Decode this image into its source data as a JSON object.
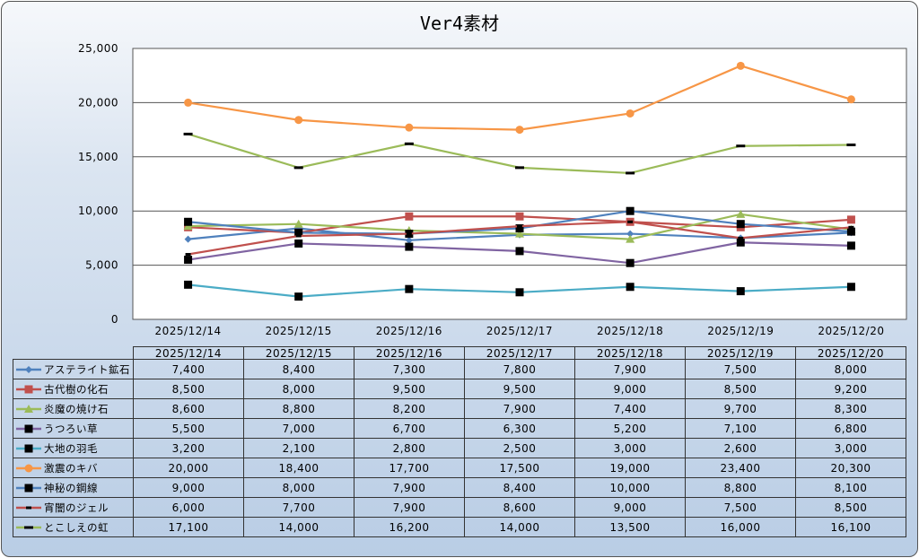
{
  "chart_data": {
    "type": "line",
    "title": "Ver4素材",
    "xlabel": "",
    "ylabel": "",
    "ylim": [
      0,
      25000
    ],
    "yticks": [
      "0",
      "5,000",
      "10,000",
      "15,000",
      "20,000",
      "25,000"
    ],
    "categories": [
      "2025/12/14",
      "2025/12/15",
      "2025/12/16",
      "2025/12/17",
      "2025/12/18",
      "2025/12/19",
      "2025/12/20"
    ],
    "grid": true,
    "legend": "data-table-bottom",
    "series": [
      {
        "name": "アステライト鉱石",
        "color": "#4f81bd",
        "marker": "diamond",
        "marker_color": "#4f81bd",
        "values": [
          7400,
          8400,
          7300,
          7800,
          7900,
          7500,
          8000
        ],
        "labels": [
          "7,400",
          "8,400",
          "7,300",
          "7,800",
          "7,900",
          "7,500",
          "8,000"
        ]
      },
      {
        "name": "古代樹の化石",
        "color": "#c0504d",
        "marker": "square",
        "marker_color": "#c0504d",
        "values": [
          8500,
          8000,
          9500,
          9500,
          9000,
          8500,
          9200
        ],
        "labels": [
          "8,500",
          "8,000",
          "9,500",
          "9,500",
          "9,000",
          "8,500",
          "9,200"
        ]
      },
      {
        "name": "炎魔の焼け石",
        "color": "#9bbb59",
        "marker": "triangle",
        "marker_color": "#9bbb59",
        "values": [
          8600,
          8800,
          8200,
          7900,
          7400,
          9700,
          8300
        ],
        "labels": [
          "8,600",
          "8,800",
          "8,200",
          "7,900",
          "7,400",
          "9,700",
          "8,300"
        ]
      },
      {
        "name": "うつろい草",
        "color": "#8064a2",
        "marker": "square",
        "marker_color": "#000000",
        "values": [
          5500,
          7000,
          6700,
          6300,
          5200,
          7100,
          6800
        ],
        "labels": [
          "5,500",
          "7,000",
          "6,700",
          "6,300",
          "5,200",
          "7,100",
          "6,800"
        ]
      },
      {
        "name": "大地の羽毛",
        "color": "#4bacc6",
        "marker": "square",
        "marker_color": "#000000",
        "values": [
          3200,
          2100,
          2800,
          2500,
          3000,
          2600,
          3000
        ],
        "labels": [
          "3,200",
          "2,100",
          "2,800",
          "2,500",
          "3,000",
          "2,600",
          "3,000"
        ]
      },
      {
        "name": "激震のキバ",
        "color": "#f79646",
        "marker": "circle",
        "marker_color": "#f79646",
        "values": [
          20000,
          18400,
          17700,
          17500,
          19000,
          23400,
          20300
        ],
        "labels": [
          "20,000",
          "18,400",
          "17,700",
          "17,500",
          "19,000",
          "23,400",
          "20,300"
        ]
      },
      {
        "name": "神秘の鋼線",
        "color": "#4f81bd",
        "marker": "square",
        "marker_color": "#000000",
        "values": [
          9000,
          8000,
          7900,
          8400,
          10000,
          8800,
          8100
        ],
        "labels": [
          "9,000",
          "8,000",
          "7,900",
          "8,400",
          "10,000",
          "8,800",
          "8,100"
        ]
      },
      {
        "name": "宵闇のジェル",
        "color": "#c0504d",
        "marker": "dash-short",
        "marker_color": "#000000",
        "values": [
          6000,
          7700,
          7900,
          8600,
          9000,
          7500,
          8500
        ],
        "labels": [
          "6,000",
          "7,700",
          "7,900",
          "8,600",
          "9,000",
          "7,500",
          "8,500"
        ]
      },
      {
        "name": "とこしえの虹",
        "color": "#9bbb59",
        "marker": "dash",
        "marker_color": "#000000",
        "values": [
          17100,
          14000,
          16200,
          14000,
          13500,
          16000,
          16100
        ],
        "labels": [
          "17,100",
          "14,000",
          "16,200",
          "14,000",
          "13,500",
          "16,000",
          "16,100"
        ]
      }
    ]
  }
}
